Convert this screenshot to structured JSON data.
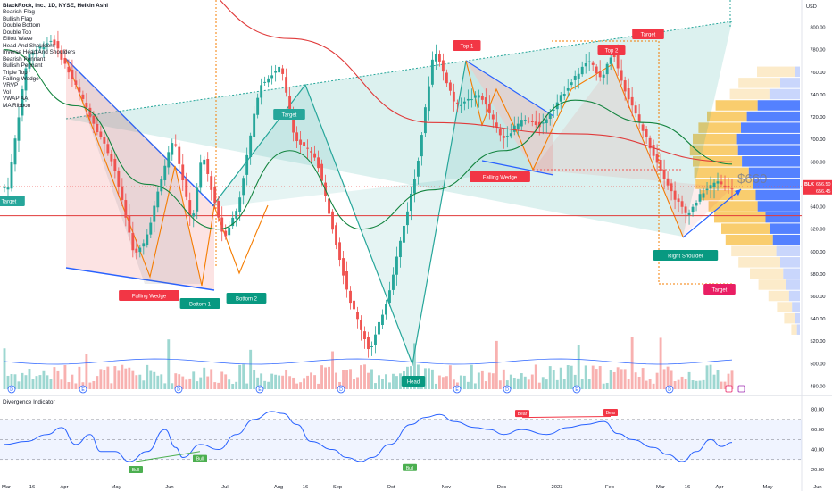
{
  "chart_title": "BlackRock, Inc., 1D, NYSE, Heikin Ashi",
  "legend_items": [
    "Bearish Flag",
    "Bullish Flag",
    "Double Bottom",
    "Double Top",
    "Elliott Wave",
    "Head And Shoulders",
    "Inverse Head And Shoulders",
    "Bearish Pennant",
    "Bullish Pennant",
    "Triple Top",
    "Falling Wedge",
    "VRVP",
    "Vol",
    "VWAP AA",
    "MA Ribbon"
  ],
  "currency": "USD",
  "price_annotation": "$660",
  "ticker_tag": "BLK",
  "last_price": "656.50",
  "last_price_2": "656.45",
  "pattern_labels": {
    "target_left": "Target",
    "target_mid": "Target",
    "target_top_right": "Target",
    "target_bottom_right": "Target",
    "top1": "Top 1",
    "top2": "Top 2",
    "falling_wedge_left": "Falling Wedge",
    "falling_wedge_right": "Falling Wedge",
    "bottom1": "Bottom 1",
    "bottom2": "Bottom 2",
    "head": "Head",
    "right_shoulder": "Right Shoulder"
  },
  "event_icons": [
    "D",
    "E",
    "D",
    "E",
    "D",
    "E",
    "D",
    "E",
    "D"
  ],
  "divergence": {
    "title": "Divergence Indicator",
    "labels": {
      "bull1": "Bull",
      "bull2": "Bull",
      "bull3": "Bull",
      "bear1": "Bear",
      "bear2": "Bear"
    }
  },
  "chart_data": {
    "type": "candlestick",
    "series_note": "Heikin Ashi daily candles, NYSE:BLK",
    "x_tick_labels": [
      "Mar",
      "16",
      "Apr",
      "May",
      "Jun",
      "Jul",
      "Aug",
      "16",
      "Sep",
      "Oct",
      "Nov",
      "Dec",
      "2023",
      "Feb",
      "Mar",
      "16",
      "Apr",
      "May",
      "Jun"
    ],
    "y_axis": {
      "ticks": [
        800,
        780,
        760,
        740,
        720,
        700,
        680,
        660,
        640,
        620,
        600,
        580,
        560,
        540,
        520,
        500,
        480
      ],
      "range": [
        474,
        818
      ]
    },
    "key_levels": {
      "horizontal_red": 632,
      "last_price": 656.5
    },
    "pivots": [
      {
        "x": 2,
        "y": 668
      },
      {
        "x": 7,
        "y": 775
      },
      {
        "x": 14,
        "y": 789
      },
      {
        "x": 22,
        "y": 738
      },
      {
        "x": 31,
        "y": 679
      },
      {
        "x": 37,
        "y": 596
      },
      {
        "x": 40,
        "y": 609
      },
      {
        "x": 46,
        "y": 683
      },
      {
        "x": 48,
        "y": 702
      },
      {
        "x": 53,
        "y": 624
      },
      {
        "x": 56,
        "y": 688
      },
      {
        "x": 62,
        "y": 612
      },
      {
        "x": 66,
        "y": 640
      },
      {
        "x": 72,
        "y": 748
      },
      {
        "x": 78,
        "y": 765
      },
      {
        "x": 82,
        "y": 700
      },
      {
        "x": 88,
        "y": 683
      },
      {
        "x": 97,
        "y": 560
      },
      {
        "x": 103,
        "y": 510
      },
      {
        "x": 108,
        "y": 560
      },
      {
        "x": 116,
        "y": 672
      },
      {
        "x": 121,
        "y": 782
      },
      {
        "x": 127,
        "y": 730
      },
      {
        "x": 134,
        "y": 740
      },
      {
        "x": 140,
        "y": 700
      },
      {
        "x": 146,
        "y": 718
      },
      {
        "x": 151,
        "y": 712
      },
      {
        "x": 158,
        "y": 745
      },
      {
        "x": 164,
        "y": 770
      },
      {
        "x": 168,
        "y": 755
      },
      {
        "x": 171,
        "y": 778
      },
      {
        "x": 175,
        "y": 740
      },
      {
        "x": 182,
        "y": 690
      },
      {
        "x": 188,
        "y": 650
      },
      {
        "x": 192,
        "y": 632
      },
      {
        "x": 196,
        "y": 652
      },
      {
        "x": 200,
        "y": 662
      },
      {
        "x": 204,
        "y": 657
      }
    ],
    "moving_averages": [
      {
        "name": "MA Ribbon (red)",
        "color": "#e03a3a",
        "points": [
          [
            0,
            905
          ],
          [
            40,
            862
          ],
          [
            80,
            790
          ],
          [
            120,
            715
          ],
          [
            160,
            705
          ],
          [
            204,
            680
          ]
        ]
      },
      {
        "name": "MA Ribbon (green)",
        "color": "#13843f",
        "points": [
          [
            0,
            780
          ],
          [
            20,
            730
          ],
          [
            40,
            660
          ],
          [
            60,
            620
          ],
          [
            80,
            690
          ],
          [
            100,
            620
          ],
          [
            120,
            655
          ],
          [
            140,
            690
          ],
          [
            160,
            735
          ],
          [
            180,
            715
          ],
          [
            204,
            678
          ]
        ]
      }
    ],
    "volume_profile_prices": [
      760,
      750,
      740,
      730,
      720,
      710,
      700,
      690,
      680,
      670,
      660,
      650,
      640,
      630,
      620,
      610,
      600,
      590,
      580,
      570,
      560,
      550,
      540,
      530
    ],
    "divergence_indicator": {
      "y_axis": {
        "ticks": [
          80,
          60,
          40,
          20
        ],
        "range": [
          12,
          85
        ]
      },
      "band": [
        30,
        70
      ],
      "pivots": [
        {
          "x": 0,
          "y": 45
        },
        {
          "x": 6,
          "y": 48
        },
        {
          "x": 12,
          "y": 55
        },
        {
          "x": 16,
          "y": 62
        },
        {
          "x": 20,
          "y": 45
        },
        {
          "x": 24,
          "y": 55
        },
        {
          "x": 27,
          "y": 38
        },
        {
          "x": 31,
          "y": 38
        },
        {
          "x": 35,
          "y": 28
        },
        {
          "x": 40,
          "y": 38
        },
        {
          "x": 45,
          "y": 60
        },
        {
          "x": 48,
          "y": 42
        },
        {
          "x": 50,
          "y": 32
        },
        {
          "x": 55,
          "y": 45
        },
        {
          "x": 60,
          "y": 40
        },
        {
          "x": 65,
          "y": 55
        },
        {
          "x": 70,
          "y": 70
        },
        {
          "x": 75,
          "y": 78
        },
        {
          "x": 78,
          "y": 76
        },
        {
          "x": 82,
          "y": 65
        },
        {
          "x": 86,
          "y": 48
        },
        {
          "x": 92,
          "y": 40
        },
        {
          "x": 96,
          "y": 32
        },
        {
          "x": 100,
          "y": 28
        },
        {
          "x": 103,
          "y": 32
        },
        {
          "x": 108,
          "y": 45
        },
        {
          "x": 114,
          "y": 65
        },
        {
          "x": 118,
          "y": 72
        },
        {
          "x": 122,
          "y": 75
        },
        {
          "x": 126,
          "y": 68
        },
        {
          "x": 132,
          "y": 62
        },
        {
          "x": 136,
          "y": 60
        },
        {
          "x": 140,
          "y": 55
        },
        {
          "x": 145,
          "y": 60
        },
        {
          "x": 152,
          "y": 55
        },
        {
          "x": 158,
          "y": 62
        },
        {
          "x": 163,
          "y": 65
        },
        {
          "x": 168,
          "y": 68
        },
        {
          "x": 172,
          "y": 56
        },
        {
          "x": 176,
          "y": 50
        },
        {
          "x": 182,
          "y": 42
        },
        {
          "x": 186,
          "y": 35
        },
        {
          "x": 190,
          "y": 28
        },
        {
          "x": 194,
          "y": 38
        },
        {
          "x": 198,
          "y": 50
        },
        {
          "x": 201,
          "y": 43
        },
        {
          "x": 204,
          "y": 47
        }
      ]
    }
  }
}
